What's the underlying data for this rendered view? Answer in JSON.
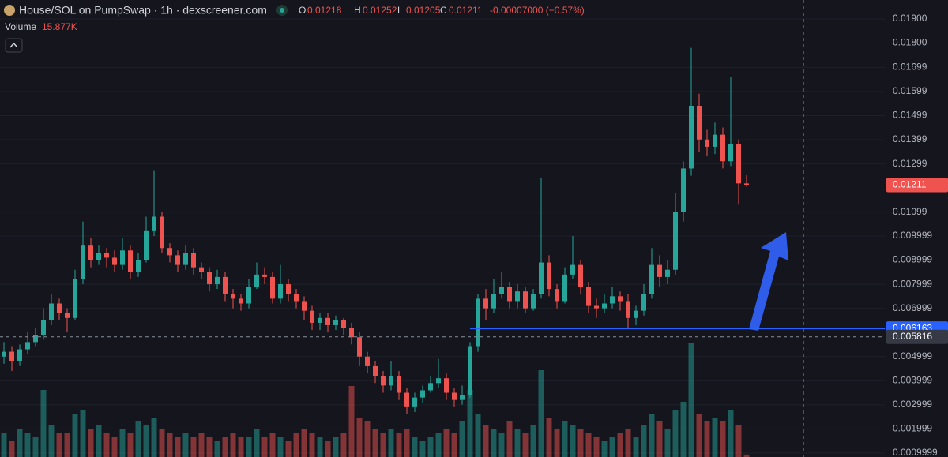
{
  "chart_data": {
    "type": "candlestick",
    "title": "House/SOL on PumpSwap · 1h · dexscreener.com",
    "ohlc_labels": [
      "O",
      "H",
      "L",
      "C"
    ],
    "change": "-0.00007000 (−0.57%)",
    "volume_title": "Volume",
    "volume_label": "15.877K",
    "up_color": "#26a69a",
    "down_color": "#ef5350",
    "ylim": [
      0.000833,
      0.019786
    ],
    "yticks": [
      {
        "value": 0.019,
        "label": "0.01900"
      },
      {
        "value": 0.018,
        "label": "0.01800"
      },
      0.01699,
      0.01599,
      0.01499,
      0.01399,
      0.01299,
      0.01099,
      0.009999,
      0.008999,
      0.007999,
      0.006999,
      0.004999,
      0.003999,
      0.002999,
      0.001999,
      0.0009999
    ],
    "grid": true,
    "support_line": 0.006163,
    "crosshair_price": 0.005816,
    "open": [
      0.005,
      0.0052,
      0.0048,
      0.0053,
      0.0056,
      0.0059,
      0.0065,
      0.0072,
      0.0068,
      0.0066,
      0.0082,
      0.0096,
      0.009,
      0.0093,
      0.0091,
      0.0088,
      0.0094,
      0.0085,
      0.009,
      0.0102,
      0.0108,
      0.0095,
      0.0092,
      0.0088,
      0.0093,
      0.0087,
      0.0085,
      0.008,
      0.0083,
      0.0076,
      0.0074,
      0.0072,
      0.0079,
      0.0084,
      0.0083,
      0.0074,
      0.008,
      0.0076,
      0.0073,
      0.0069,
      0.0064,
      0.0066,
      0.0063,
      0.0065,
      0.0062,
      0.0058,
      0.005,
      0.0046,
      0.0042,
      0.0038,
      0.0042,
      0.0035,
      0.0029,
      0.0033,
      0.0036,
      0.0039,
      0.0041,
      0.0035,
      0.0032,
      0.0034,
      0.0054,
      0.0074,
      0.007,
      0.0076,
      0.0079,
      0.0073,
      0.0077,
      0.007,
      0.0076,
      0.0089,
      0.0078,
      0.0073,
      0.0084,
      0.0088,
      0.0079,
      0.0071,
      0.007,
      0.0072,
      0.0075,
      0.0073,
      0.0066,
      0.0069,
      0.0076,
      0.0088,
      0.0083,
      0.0086,
      0.011,
      0.0128,
      0.0154,
      0.014,
      0.0137,
      0.0142,
      0.0131,
      0.0138,
      0.01218
    ],
    "high": [
      0.0056,
      0.0054,
      0.0055,
      0.006,
      0.0062,
      0.007,
      0.0076,
      0.0074,
      0.007,
      0.0086,
      0.0106,
      0.0099,
      0.0096,
      0.0095,
      0.0094,
      0.0099,
      0.0096,
      0.0093,
      0.0108,
      0.0127,
      0.011,
      0.0097,
      0.0094,
      0.0096,
      0.0095,
      0.0089,
      0.0087,
      0.0086,
      0.0085,
      0.0078,
      0.0076,
      0.0082,
      0.0089,
      0.0087,
      0.0085,
      0.0088,
      0.0082,
      0.0078,
      0.0075,
      0.0071,
      0.0068,
      0.0068,
      0.0067,
      0.0066,
      0.0064,
      0.006,
      0.0052,
      0.0048,
      0.0044,
      0.0048,
      0.0044,
      0.0037,
      0.0035,
      0.0038,
      0.0042,
      0.0049,
      0.0043,
      0.0037,
      0.0038,
      0.0056,
      0.0076,
      0.0078,
      0.0082,
      0.0085,
      0.0081,
      0.008,
      0.0079,
      0.0078,
      0.0124,
      0.0092,
      0.008,
      0.0087,
      0.01,
      0.009,
      0.0081,
      0.0074,
      0.0076,
      0.0079,
      0.0077,
      0.0076,
      0.0071,
      0.008,
      0.0095,
      0.0092,
      0.009,
      0.0118,
      0.0131,
      0.0178,
      0.0159,
      0.0144,
      0.0147,
      0.0145,
      0.0166,
      0.014,
      0.01252
    ],
    "low": [
      0.0047,
      0.0044,
      0.0046,
      0.0051,
      0.0054,
      0.0057,
      0.0063,
      0.0065,
      0.006,
      0.0065,
      0.008,
      0.0087,
      0.0088,
      0.0087,
      0.0085,
      0.0086,
      0.0082,
      0.0083,
      0.0089,
      0.01,
      0.0093,
      0.0089,
      0.0085,
      0.0086,
      0.0084,
      0.0082,
      0.0077,
      0.0078,
      0.0073,
      0.007,
      0.0069,
      0.007,
      0.0078,
      0.008,
      0.0072,
      0.0072,
      0.0073,
      0.007,
      0.0065,
      0.0061,
      0.0061,
      0.006,
      0.0061,
      0.0059,
      0.0055,
      0.0046,
      0.0043,
      0.0039,
      0.0035,
      0.0036,
      0.0032,
      0.0026,
      0.0027,
      0.0031,
      0.0035,
      0.0037,
      0.0032,
      0.0029,
      0.003,
      0.0033,
      0.0052,
      0.0065,
      0.0068,
      0.0074,
      0.007,
      0.007,
      0.0068,
      0.0069,
      0.0074,
      0.0075,
      0.007,
      0.0072,
      0.0082,
      0.0076,
      0.0068,
      0.0066,
      0.0068,
      0.007,
      0.0069,
      0.0062,
      0.0063,
      0.0067,
      0.0074,
      0.0079,
      0.008,
      0.0084,
      0.0106,
      0.0125,
      0.0135,
      0.0133,
      0.0134,
      0.0128,
      0.0129,
      0.0113,
      0.01205
    ],
    "close": [
      0.0052,
      0.0048,
      0.0053,
      0.0056,
      0.0059,
      0.0065,
      0.0072,
      0.0068,
      0.0066,
      0.0082,
      0.0096,
      0.009,
      0.0093,
      0.0091,
      0.0088,
      0.0094,
      0.0085,
      0.009,
      0.0102,
      0.0108,
      0.0095,
      0.0092,
      0.0088,
      0.0093,
      0.0087,
      0.0085,
      0.008,
      0.0083,
      0.0076,
      0.0074,
      0.0072,
      0.0079,
      0.0084,
      0.0083,
      0.0074,
      0.008,
      0.0076,
      0.0073,
      0.0069,
      0.0064,
      0.0066,
      0.0063,
      0.0065,
      0.0062,
      0.0058,
      0.005,
      0.0046,
      0.0042,
      0.0038,
      0.0042,
      0.0035,
      0.0029,
      0.0033,
      0.0036,
      0.0039,
      0.0041,
      0.0035,
      0.0032,
      0.0034,
      0.0054,
      0.0074,
      0.007,
      0.0076,
      0.0079,
      0.0073,
      0.0077,
      0.007,
      0.0076,
      0.0089,
      0.0078,
      0.0073,
      0.0084,
      0.0088,
      0.0079,
      0.0071,
      0.007,
      0.0072,
      0.0075,
      0.0073,
      0.0066,
      0.0069,
      0.0076,
      0.0088,
      0.0083,
      0.0086,
      0.011,
      0.0128,
      0.0154,
      0.014,
      0.0137,
      0.0142,
      0.0131,
      0.0138,
      0.01218,
      0.01211
    ],
    "volume": [
      150000,
      100000,
      175000,
      150000,
      125000,
      425000,
      200000,
      150000,
      150000,
      275000,
      300000,
      175000,
      200000,
      150000,
      125000,
      175000,
      150000,
      225000,
      200000,
      250000,
      175000,
      150000,
      125000,
      150000,
      125000,
      150000,
      125000,
      100000,
      125000,
      150000,
      125000,
      125000,
      175000,
      125000,
      150000,
      125000,
      100000,
      150000,
      175000,
      150000,
      125000,
      100000,
      125000,
      150000,
      450000,
      250000,
      225000,
      175000,
      150000,
      175000,
      150000,
      175000,
      125000,
      100000,
      125000,
      150000,
      175000,
      150000,
      225000,
      425000,
      275000,
      200000,
      175000,
      150000,
      225000,
      175000,
      150000,
      200000,
      550000,
      250000,
      175000,
      225000,
      200000,
      175000,
      150000,
      125000,
      100000,
      125000,
      150000,
      175000,
      125000,
      200000,
      275000,
      225000,
      175000,
      300000,
      350000,
      725000,
      275000,
      225000,
      250000,
      225000,
      300000,
      200000,
      15877
    ]
  }
}
